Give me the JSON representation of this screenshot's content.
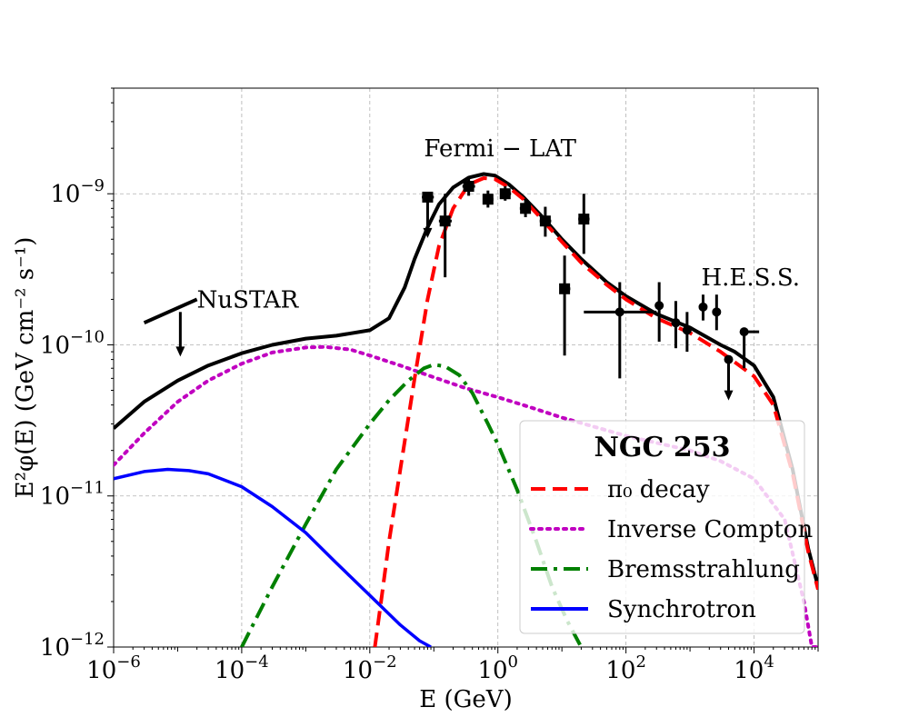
{
  "chart_data": {
    "type": "line",
    "xscale": "log",
    "yscale": "log",
    "xlim": [
      1e-06,
      100000
    ],
    "ylim": [
      1e-12,
      5e-09
    ],
    "xlabel": "E (GeV)",
    "ylabel": "E²φ(E) (GeV cm⁻² s⁻¹)",
    "grid": true,
    "x_ticks": [
      {
        "value": 1e-06,
        "base": "10",
        "exp": "−6"
      },
      {
        "value": 0.0001,
        "base": "10",
        "exp": "−4"
      },
      {
        "value": 0.01,
        "base": "10",
        "exp": "−2"
      },
      {
        "value": 1,
        "base": "10",
        "exp": "0"
      },
      {
        "value": 100,
        "base": "10",
        "exp": "2"
      },
      {
        "value": 10000,
        "base": "10",
        "exp": "4"
      }
    ],
    "y_ticks": [
      {
        "value": 1e-12,
        "base": "10",
        "exp": "−12"
      },
      {
        "value": 1e-11,
        "base": "10",
        "exp": "−11"
      },
      {
        "value": 1e-10,
        "base": "10",
        "exp": "−10"
      },
      {
        "value": 1e-09,
        "base": "10",
        "exp": "−9"
      }
    ],
    "legend": {
      "title": "NGC 253",
      "placement": "lower-right",
      "entries": [
        {
          "label": "π₀ decay",
          "series": "pi0"
        },
        {
          "label": "Inverse Compton",
          "series": "ic"
        },
        {
          "label": "Bremsstrahlung",
          "series": "brems"
        },
        {
          "label": "Synchrotron",
          "series": "sync"
        }
      ]
    },
    "annotations": [
      {
        "text": "NuSTAR",
        "x": 2e-05,
        "y": 2e-10
      },
      {
        "text": "Fermi − LAT",
        "x": 0.07,
        "y": 2e-09
      },
      {
        "text": "H.E.S.S.",
        "x": 1500,
        "y": 2.8e-10
      }
    ],
    "series": [
      {
        "name": "total",
        "color": "#000000",
        "style": "solid",
        "x": [
          1e-06,
          3e-06,
          1e-05,
          3e-05,
          0.0001,
          0.0003,
          0.001,
          0.003,
          0.01,
          0.02,
          0.035,
          0.05,
          0.08,
          0.12,
          0.2,
          0.35,
          0.6,
          0.9,
          1.5,
          2.5,
          5,
          10,
          20,
          50,
          100,
          300,
          1000,
          3000,
          5000,
          10000,
          20000,
          40000,
          70000,
          100000
        ],
        "y": [
          2.8e-11,
          4.2e-11,
          5.8e-11,
          7.3e-11,
          8.8e-11,
          1e-10,
          1.1e-10,
          1.15e-10,
          1.25e-10,
          1.5e-10,
          2.4e-10,
          3.7e-10,
          6e-10,
          8.5e-10,
          1.1e-09,
          1.28e-09,
          1.35e-09,
          1.32e-09,
          1.15e-09,
          9.5e-10,
          7e-10,
          5e-10,
          3.7e-10,
          2.6e-10,
          2.1e-10,
          1.6e-10,
          1.3e-10,
          1e-10,
          9e-11,
          7.3e-11,
          4.5e-11,
          1.5e-11,
          4.5e-12,
          2.5e-12
        ]
      },
      {
        "name": "pi0",
        "color": "#ff0000",
        "style": "dashed",
        "x": [
          0.012,
          0.015,
          0.02,
          0.03,
          0.05,
          0.08,
          0.12,
          0.2,
          0.35,
          0.6,
          0.9,
          1.5,
          2.5,
          5,
          10,
          20,
          50,
          100,
          300,
          1000,
          3000,
          10000,
          20000,
          40000,
          70000,
          100000
        ],
        "y": [
          1e-12,
          2e-12,
          5e-12,
          1.5e-11,
          6e-11,
          2e-10,
          4.5e-10,
          8e-10,
          1.15e-09,
          1.27e-09,
          1.25e-09,
          1.1e-09,
          9.2e-10,
          6.7e-10,
          4.8e-10,
          3.5e-10,
          2.5e-10,
          2e-10,
          1.5e-10,
          1.2e-10,
          9e-11,
          6.2e-11,
          4e-11,
          1.4e-11,
          4.3e-12,
          2.4e-12
        ]
      },
      {
        "name": "ic",
        "color": "#c000c0",
        "style": "dotted",
        "x": [
          1e-06,
          3e-06,
          1e-05,
          3e-05,
          0.0001,
          0.0003,
          0.001,
          0.002,
          0.005,
          0.01,
          0.03,
          0.1,
          0.3,
          1,
          3,
          10,
          100,
          1000,
          3000,
          10000,
          30000,
          60000,
          80000,
          100000
        ],
        "y": [
          1.6e-11,
          2.6e-11,
          4.2e-11,
          5.8e-11,
          7.5e-11,
          8.9e-11,
          9.6e-11,
          9.7e-11,
          9.3e-11,
          8.5e-11,
          7.3e-11,
          6.1e-11,
          5.2e-11,
          4.5e-11,
          3.9e-11,
          3.3e-11,
          2.5e-11,
          2e-11,
          1.7e-11,
          1.3e-11,
          7e-12,
          2e-12,
          1e-12,
          1e-12
        ]
      },
      {
        "name": "brems",
        "color": "#008000",
        "style": "dashdot",
        "x": [
          0.0001,
          0.0003,
          0.001,
          0.003,
          0.01,
          0.02,
          0.04,
          0.07,
          0.1,
          0.15,
          0.25,
          0.4,
          0.7,
          1,
          2,
          4,
          7,
          12,
          20
        ],
        "y": [
          1e-12,
          2.5e-12,
          6.5e-12,
          1.5e-11,
          3e-11,
          4.3e-11,
          5.8e-11,
          7e-11,
          7.4e-11,
          7.2e-11,
          6.3e-11,
          4.8e-11,
          3e-11,
          2.2e-11,
          1.1e-11,
          5e-12,
          2.5e-12,
          1.5e-12,
          1e-12
        ]
      },
      {
        "name": "sync",
        "color": "#0000ff",
        "style": "solid",
        "x": [
          1e-06,
          3e-06,
          7e-06,
          1.5e-05,
          3e-05,
          0.0001,
          0.0003,
          0.001,
          0.003,
          0.01,
          0.03,
          0.06,
          0.09
        ],
        "y": [
          1.3e-11,
          1.45e-11,
          1.5e-11,
          1.47e-11,
          1.4e-11,
          1.15e-11,
          8.5e-12,
          5.7e-12,
          3.6e-12,
          2.2e-12,
          1.4e-12,
          1.1e-12,
          1e-12
        ]
      }
    ],
    "data_points": [
      {
        "x": 0.08,
        "y": 9.5e-10,
        "xlo": 0.065,
        "xhi": 0.1,
        "upper_limit": true,
        "marker": "square"
      },
      {
        "x": 0.15,
        "y": 6.6e-10,
        "xlo": 0.12,
        "xhi": 0.19,
        "ylo": 2.8e-10,
        "yhi": 1e-09,
        "marker": "square"
      },
      {
        "x": 0.35,
        "y": 1.12e-09,
        "xlo": 0.28,
        "xhi": 0.44,
        "ylo": 9.7e-10,
        "yhi": 1.28e-09,
        "marker": "square"
      },
      {
        "x": 0.7,
        "y": 9.2e-10,
        "xlo": 0.58,
        "xhi": 0.85,
        "ylo": 8.1e-10,
        "yhi": 1.05e-09,
        "marker": "square"
      },
      {
        "x": 1.3,
        "y": 1e-09,
        "xlo": 1.08,
        "xhi": 1.6,
        "ylo": 9e-10,
        "yhi": 1.12e-09,
        "marker": "square"
      },
      {
        "x": 2.7,
        "y": 8e-10,
        "xlo": 2.2,
        "xhi": 3.3,
        "ylo": 7e-10,
        "yhi": 9.2e-10,
        "marker": "square"
      },
      {
        "x": 5.5,
        "y": 6.6e-10,
        "xlo": 4.5,
        "xhi": 6.8,
        "ylo": 5.2e-10,
        "yhi": 8.2e-10,
        "marker": "square"
      },
      {
        "x": 11,
        "y": 2.35e-10,
        "xlo": 9.2,
        "xhi": 13.5,
        "ylo": 8.5e-11,
        "yhi": 3.9e-10,
        "marker": "square"
      },
      {
        "x": 22,
        "y": 6.8e-10,
        "xlo": 18,
        "xhi": 27,
        "ylo": 4e-10,
        "yhi": 1e-09,
        "marker": "square"
      },
      {
        "x": 80,
        "y": 1.65e-10,
        "xlo": 22,
        "xhi": 300,
        "ylo": 6e-11,
        "yhi": 2.6e-10,
        "marker": "circle"
      },
      {
        "x": 330,
        "y": 1.82e-10,
        "xlo": 330,
        "xhi": 330,
        "ylo": 1.05e-10,
        "yhi": 2.6e-10,
        "marker": "circle"
      },
      {
        "x": 600,
        "y": 1.4e-10,
        "xlo": 600,
        "xhi": 600,
        "ylo": 9.5e-11,
        "yhi": 1.95e-10,
        "marker": "circle"
      },
      {
        "x": 900,
        "y": 1.25e-10,
        "xlo": 900,
        "xhi": 900,
        "ylo": 9e-11,
        "yhi": 1.65e-10,
        "marker": "circle"
      },
      {
        "x": 1600,
        "y": 1.78e-10,
        "xlo": 1600,
        "xhi": 1600,
        "ylo": 1.45e-10,
        "yhi": 2.15e-10,
        "marker": "circle"
      },
      {
        "x": 2600,
        "y": 1.65e-10,
        "xlo": 2600,
        "xhi": 2600,
        "ylo": 1.25e-10,
        "yhi": 2.15e-10,
        "marker": "circle"
      },
      {
        "x": 4000,
        "y": 8e-11,
        "xlo": 4000,
        "xhi": 4000,
        "upper_limit": true,
        "marker": "circle"
      },
      {
        "x": 7000,
        "y": 1.22e-10,
        "xlo": 7000,
        "xhi": 12000,
        "ylo": 7e-11,
        "yhi": 1.22e-10,
        "marker": "circle"
      }
    ],
    "nustar_limit": {
      "x": 1.1e-05,
      "y": 1.65e-10,
      "x0": 3e-06,
      "y0": 1.4e-10,
      "x1": 2e-05,
      "y1": 2e-10
    }
  }
}
